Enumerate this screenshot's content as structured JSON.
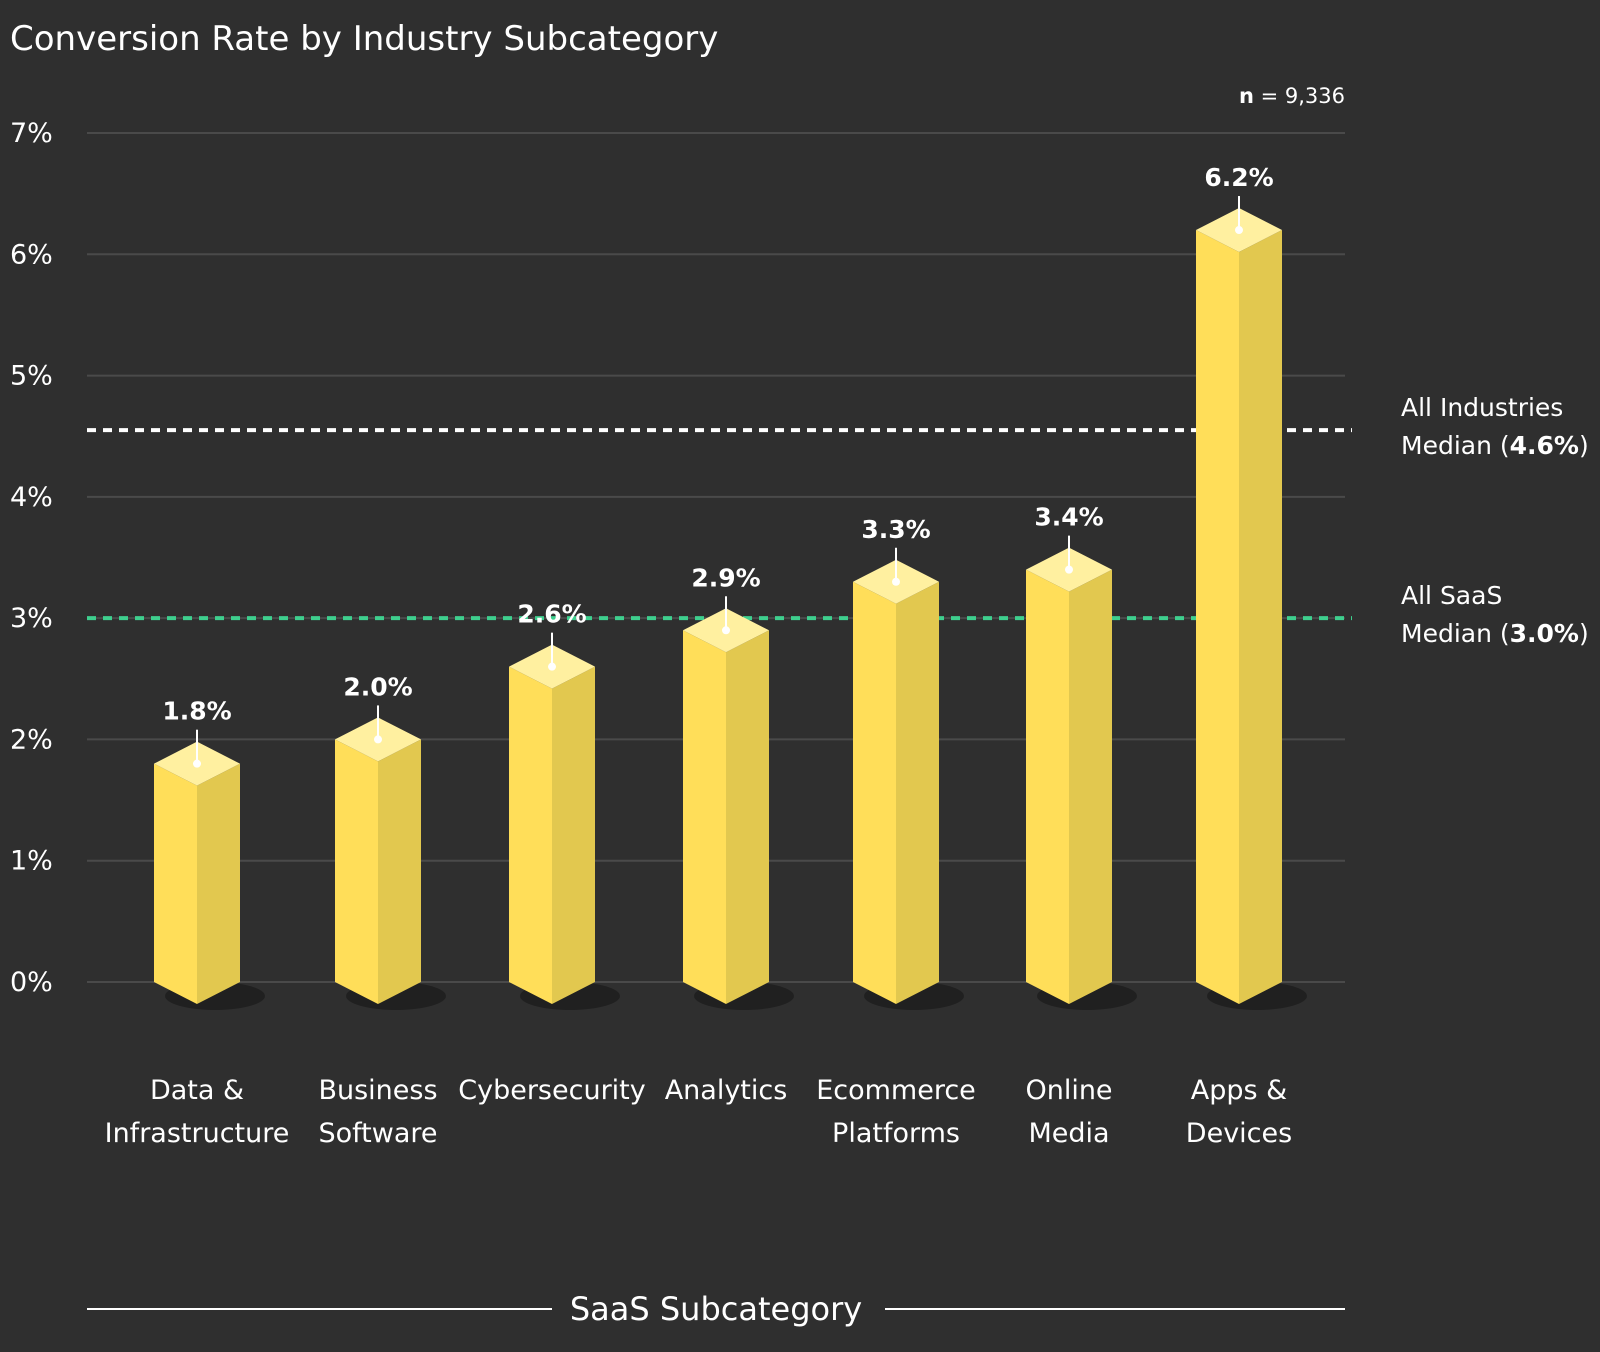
{
  "chart_data": {
    "type": "bar",
    "title": "Conversion Rate by Industry Subcategory",
    "sample_size": {
      "label": "n",
      "value": "9,336"
    },
    "categories": [
      [
        "Data &",
        "Infrastructure"
      ],
      [
        "Business",
        "Software"
      ],
      [
        "Cybersecurity"
      ],
      [
        "Analytics"
      ],
      [
        "Ecommerce",
        "Platforms"
      ],
      [
        "Online",
        "Media"
      ],
      [
        "Apps &",
        "Devices"
      ]
    ],
    "values": [
      1.8,
      2.0,
      2.6,
      2.9,
      3.3,
      3.4,
      6.2
    ],
    "value_labels": [
      "1.8%",
      "2.0%",
      "2.6%",
      "2.9%",
      "3.3%",
      "3.4%",
      "6.2%"
    ],
    "y_ticks": [
      0,
      1,
      2,
      3,
      4,
      5,
      6,
      7
    ],
    "y_tick_labels": [
      "0%",
      "1%",
      "2%",
      "3%",
      "4%",
      "5%",
      "6%",
      "7%"
    ],
    "ylim": [
      0,
      7
    ],
    "xlabel": "SaaS Subcategory",
    "ylabel": "",
    "grid": true,
    "reference_lines": [
      {
        "value": 4.55,
        "line1": "All Industries",
        "line2_prefix": "Median (",
        "line2_bold": "4.6%",
        "line2_suffix": ")",
        "color": "#ffffff"
      },
      {
        "value": 3.0,
        "line1": "All SaaS",
        "line2_prefix": "Median (",
        "line2_bold": "3.0%",
        "line2_suffix": ")",
        "color": "#3ecf8e"
      }
    ],
    "colors": {
      "background": "#2f2f2f",
      "bar_front": "#ffde59",
      "bar_side": "#e2c84f",
      "bar_top": "#fff0a0",
      "grid": "#4a4a4a",
      "text": "#ffffff"
    }
  }
}
